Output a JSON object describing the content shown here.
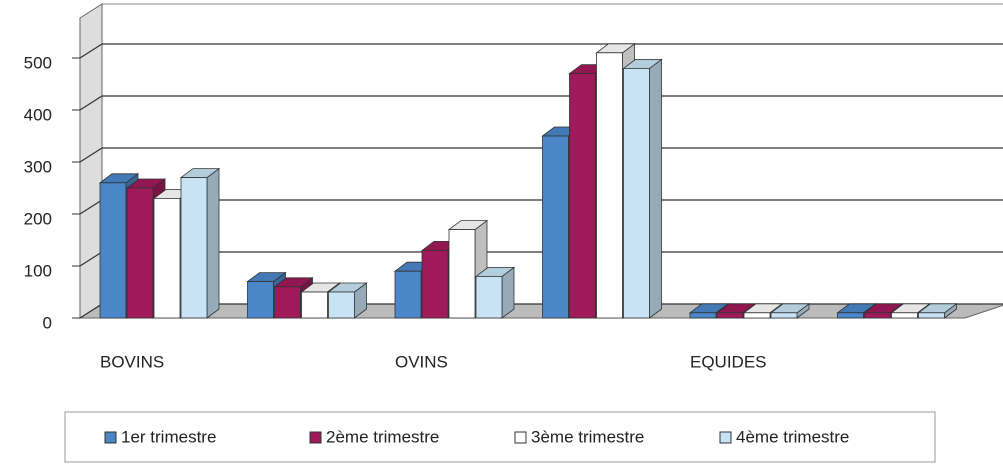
{
  "chart_data": {
    "type": "bar3d",
    "categories": [
      "BOVINS",
      null,
      "OVINS",
      null,
      "EQUIDES",
      null
    ],
    "series": [
      {
        "name": "1er trimestre",
        "color": "#4a86c8",
        "values": [
          260,
          70,
          90,
          350,
          10,
          10
        ]
      },
      {
        "name": "2ème trimestre",
        "color": "#a0195a",
        "values": [
          250,
          60,
          130,
          470,
          10,
          10
        ]
      },
      {
        "name": "3ème trimestre",
        "color": "#ffffff",
        "values": [
          230,
          50,
          170,
          510,
          10,
          10
        ]
      },
      {
        "name": "4ème trimestre",
        "color": "#c8e4f4",
        "values": [
          270,
          50,
          80,
          480,
          10,
          10
        ]
      }
    ],
    "ylim": [
      0,
      500
    ],
    "yticks": [
      0,
      100,
      200,
      300,
      400,
      500
    ],
    "grid": true,
    "legend": "bottom"
  }
}
